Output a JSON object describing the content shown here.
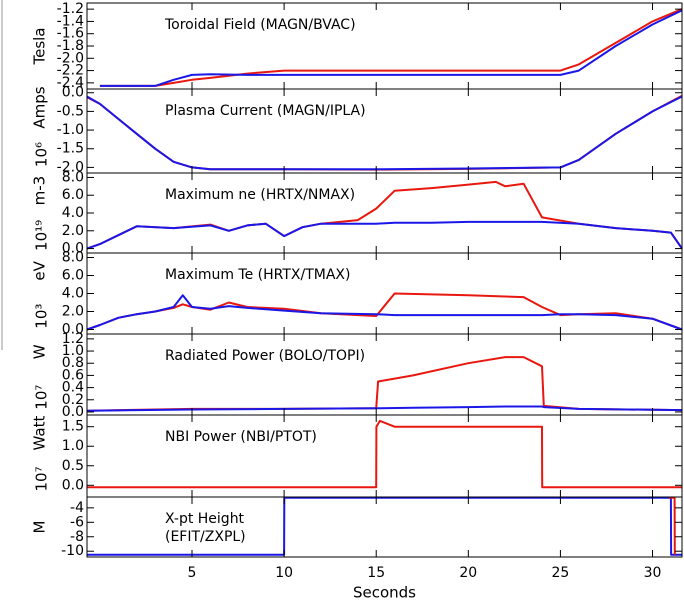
{
  "chart_data": [
    {
      "type": "line",
      "title": "Toroidal Field (MAGN/BVAC)",
      "ylabel": "Tesla",
      "xlim": [
        -0.7,
        31.6
      ],
      "xticks": [
        5,
        10,
        15,
        20,
        25,
        30
      ],
      "ylim": [
        -2.5,
        -1.1
      ],
      "yticks": [
        -2.4,
        -2.2,
        {
          "value": -2.0,
          "label": "-2.0"
        },
        -1.8,
        -1.6,
        -1.4,
        -1.2
      ],
      "x": [
        0,
        3,
        4,
        5,
        6,
        8,
        10,
        15,
        20,
        25,
        26,
        28,
        30,
        31.6
      ],
      "series": [
        {
          "color": "#e8170f",
          "values": [
            -2.45,
            -2.45,
            -2.4,
            -2.35,
            -2.32,
            -2.25,
            -2.2,
            -2.2,
            -2.2,
            -2.2,
            -2.1,
            -1.75,
            -1.4,
            -1.2
          ]
        },
        {
          "color": "#1a18e8",
          "values": [
            -2.45,
            -2.45,
            -2.35,
            -2.27,
            -2.26,
            -2.27,
            -2.27,
            -2.27,
            -2.27,
            -2.27,
            -2.2,
            -1.8,
            -1.45,
            -1.22
          ]
        }
      ]
    },
    {
      "type": "line",
      "title": "Plasma Current (MAGN/IPLA)",
      "ylabel": "Amps",
      "scale": "10⁶",
      "xlim": [
        -0.7,
        31.6
      ],
      "xticks": [
        5,
        10,
        15,
        20,
        25,
        30
      ],
      "ylim": [
        -2.15,
        0.1
      ],
      "yticks": [
        {
          "value": -2.0,
          "label": "-2.0"
        },
        -1.5,
        {
          "value": -1.0,
          "label": "-1.0"
        },
        -0.5,
        {
          "value": 0,
          "label": "0.0"
        }
      ],
      "x": [
        -0.7,
        0,
        1,
        2,
        3,
        4,
        5,
        6,
        10,
        15,
        20,
        25,
        26,
        28,
        30,
        31.6
      ],
      "series": [
        {
          "color": "#e8170f",
          "values": [
            -0.12,
            -0.3,
            -0.7,
            -1.1,
            -1.5,
            -1.85,
            -2.0,
            -2.05,
            -2.05,
            -2.06,
            -2.04,
            -2.0,
            -1.8,
            -1.1,
            -0.5,
            -0.08
          ]
        },
        {
          "color": "#1a18e8",
          "values": [
            -0.1,
            -0.3,
            -0.7,
            -1.1,
            -1.5,
            -1.85,
            -2.0,
            -2.05,
            -2.05,
            -2.05,
            -2.03,
            -2.0,
            -1.8,
            -1.1,
            -0.5,
            -0.1
          ]
        }
      ]
    },
    {
      "type": "line",
      "title": "Maximum ne (HRTX/NMAX)",
      "ylabel": "m-3",
      "scale": "10¹⁹",
      "xlim": [
        -0.7,
        31.6
      ],
      "xticks": [
        5,
        10,
        15,
        20,
        25,
        30
      ],
      "ylim": [
        -0.5,
        8.5
      ],
      "yticks": [
        {
          "value": 0,
          "label": "0.0"
        },
        {
          "value": 2,
          "label": "2.0"
        },
        {
          "value": 4,
          "label": "4.0"
        },
        {
          "value": 6,
          "label": "6.0"
        },
        {
          "value": 8,
          "label": "8.0"
        }
      ],
      "x": [
        -0.7,
        0,
        1,
        2,
        4,
        6,
        7,
        8,
        9,
        10,
        11,
        12,
        14,
        15,
        16,
        18,
        20,
        21.5,
        22,
        23,
        24,
        26,
        28,
        30,
        31,
        31.6
      ],
      "series": [
        {
          "color": "#e8170f",
          "values": [
            0,
            0.5,
            1.5,
            2.5,
            2.3,
            2.7,
            2,
            2.6,
            2.8,
            1.4,
            2.4,
            2.8,
            3.2,
            4.5,
            6.5,
            6.8,
            7.2,
            7.5,
            7.0,
            7.3,
            3.5,
            2.8,
            2.3,
            2,
            1.8,
            0
          ]
        },
        {
          "color": "#1a18e8",
          "values": [
            0,
            0.5,
            1.5,
            2.5,
            2.3,
            2.6,
            2,
            2.6,
            2.8,
            1.4,
            2.4,
            2.8,
            2.8,
            2.8,
            2.9,
            2.9,
            3,
            3,
            3,
            3,
            3,
            2.8,
            2.3,
            2,
            1.8,
            0
          ]
        }
      ]
    },
    {
      "type": "line",
      "title": "Maximum Te (HRTX/TMAX)",
      "ylabel": "eV",
      "scale": "10³",
      "xlim": [
        -0.7,
        31.6
      ],
      "xticks": [
        5,
        10,
        15,
        20,
        25,
        30
      ],
      "ylim": [
        -0.5,
        8.5
      ],
      "yticks": [
        {
          "value": 0,
          "label": "0.0"
        },
        {
          "value": 2,
          "label": "2.0"
        },
        {
          "value": 4,
          "label": "4.0"
        },
        {
          "value": 6,
          "label": "6.0"
        },
        {
          "value": 8,
          "label": "8.0"
        }
      ],
      "x": [
        -0.7,
        0,
        1,
        2,
        3,
        4,
        4.5,
        5,
        6,
        7,
        8,
        10,
        12,
        15,
        16,
        20,
        23,
        24,
        25,
        26,
        28,
        30,
        31.6
      ],
      "series": [
        {
          "color": "#e8170f",
          "values": [
            0,
            0.5,
            1.3,
            1.7,
            2,
            2.4,
            2.8,
            2.5,
            2.2,
            3,
            2.5,
            2.3,
            1.8,
            1.5,
            4,
            3.8,
            3.6,
            2.5,
            1.6,
            1.7,
            1.8,
            1.2,
            0
          ]
        },
        {
          "color": "#1a18e8",
          "values": [
            0,
            0.5,
            1.3,
            1.7,
            2,
            2.5,
            3.8,
            2.5,
            2.3,
            2.6,
            2.4,
            2.1,
            1.8,
            1.7,
            1.6,
            1.6,
            1.6,
            1.6,
            1.7,
            1.7,
            1.6,
            1.2,
            0
          ]
        }
      ]
    },
    {
      "type": "line",
      "title": "Radiated Power (BOLO/TOPI)",
      "ylabel": "W",
      "scale": "10⁷",
      "xlim": [
        -0.7,
        31.6
      ],
      "xticks": [
        5,
        10,
        15,
        20,
        25,
        30
      ],
      "ylim": [
        -0.05,
        1.28
      ],
      "yticks": [
        {
          "value": 0,
          "label": "0.0"
        },
        0.2,
        0.4,
        0.6,
        0.8,
        {
          "value": 1,
          "label": "1.0"
        },
        1.2
      ],
      "x": [
        -0.7,
        5,
        10,
        15,
        15.1,
        17,
        20,
        22,
        23,
        24,
        24.1,
        26,
        31.6
      ],
      "series": [
        {
          "color": "#e8170f",
          "values": [
            0.02,
            0.05,
            0.05,
            0.06,
            0.5,
            0.6,
            0.8,
            0.9,
            0.9,
            0.75,
            0.1,
            0.05,
            0.03
          ]
        },
        {
          "color": "#1a18e8",
          "values": [
            0.02,
            0.04,
            0.05,
            0.06,
            0.06,
            0.07,
            0.08,
            0.09,
            0.09,
            0.09,
            0.08,
            0.05,
            0.03
          ]
        }
      ]
    },
    {
      "type": "line",
      "title": "NBI Power (NBI/PTOT)",
      "ylabel": "Watt",
      "scale": "10⁷",
      "xlim": [
        -0.7,
        31.6
      ],
      "xticks": [
        5,
        10,
        15,
        20,
        25,
        30
      ],
      "ylim": [
        -0.3,
        1.8
      ],
      "yticks": [
        {
          "value": 0,
          "label": "0.0"
        },
        0.5,
        {
          "value": 1,
          "label": "1.0"
        },
        1.5
      ],
      "x": [
        -0.7,
        15,
        15.01,
        15.2,
        16,
        20,
        24,
        24.01,
        31.6
      ],
      "series": [
        {
          "color": "#e8170f",
          "values": [
            -0.05,
            -0.05,
            1.5,
            1.65,
            1.5,
            1.5,
            1.5,
            -0.05,
            -0.05
          ]
        }
      ]
    },
    {
      "type": "line",
      "title": "X-pt Height",
      "subtitle": "(EFIT/ZXPL)",
      "ylabel": "M",
      "xlim": [
        -0.7,
        31.6
      ],
      "xticks": [
        5,
        10,
        15,
        20,
        25,
        30
      ],
      "xlabel": "Seconds",
      "ylim": [
        -10.8,
        -2.5
      ],
      "yticks": [
        -10,
        -8,
        -6,
        -4
      ],
      "x": [
        -0.7,
        10,
        10.01,
        31,
        31.01,
        31.6
      ],
      "series": [
        {
          "color": "#1a18e8",
          "values": [
            -10.5,
            -10.5,
            -2.6,
            -2.6,
            -10.5,
            -10.5
          ]
        },
        {
          "color": "#e8170f",
          "x": [
            30.9,
            31.2,
            31.21
          ],
          "values": [
            -2.6,
            -2.6,
            -10.5
          ]
        }
      ]
    }
  ]
}
